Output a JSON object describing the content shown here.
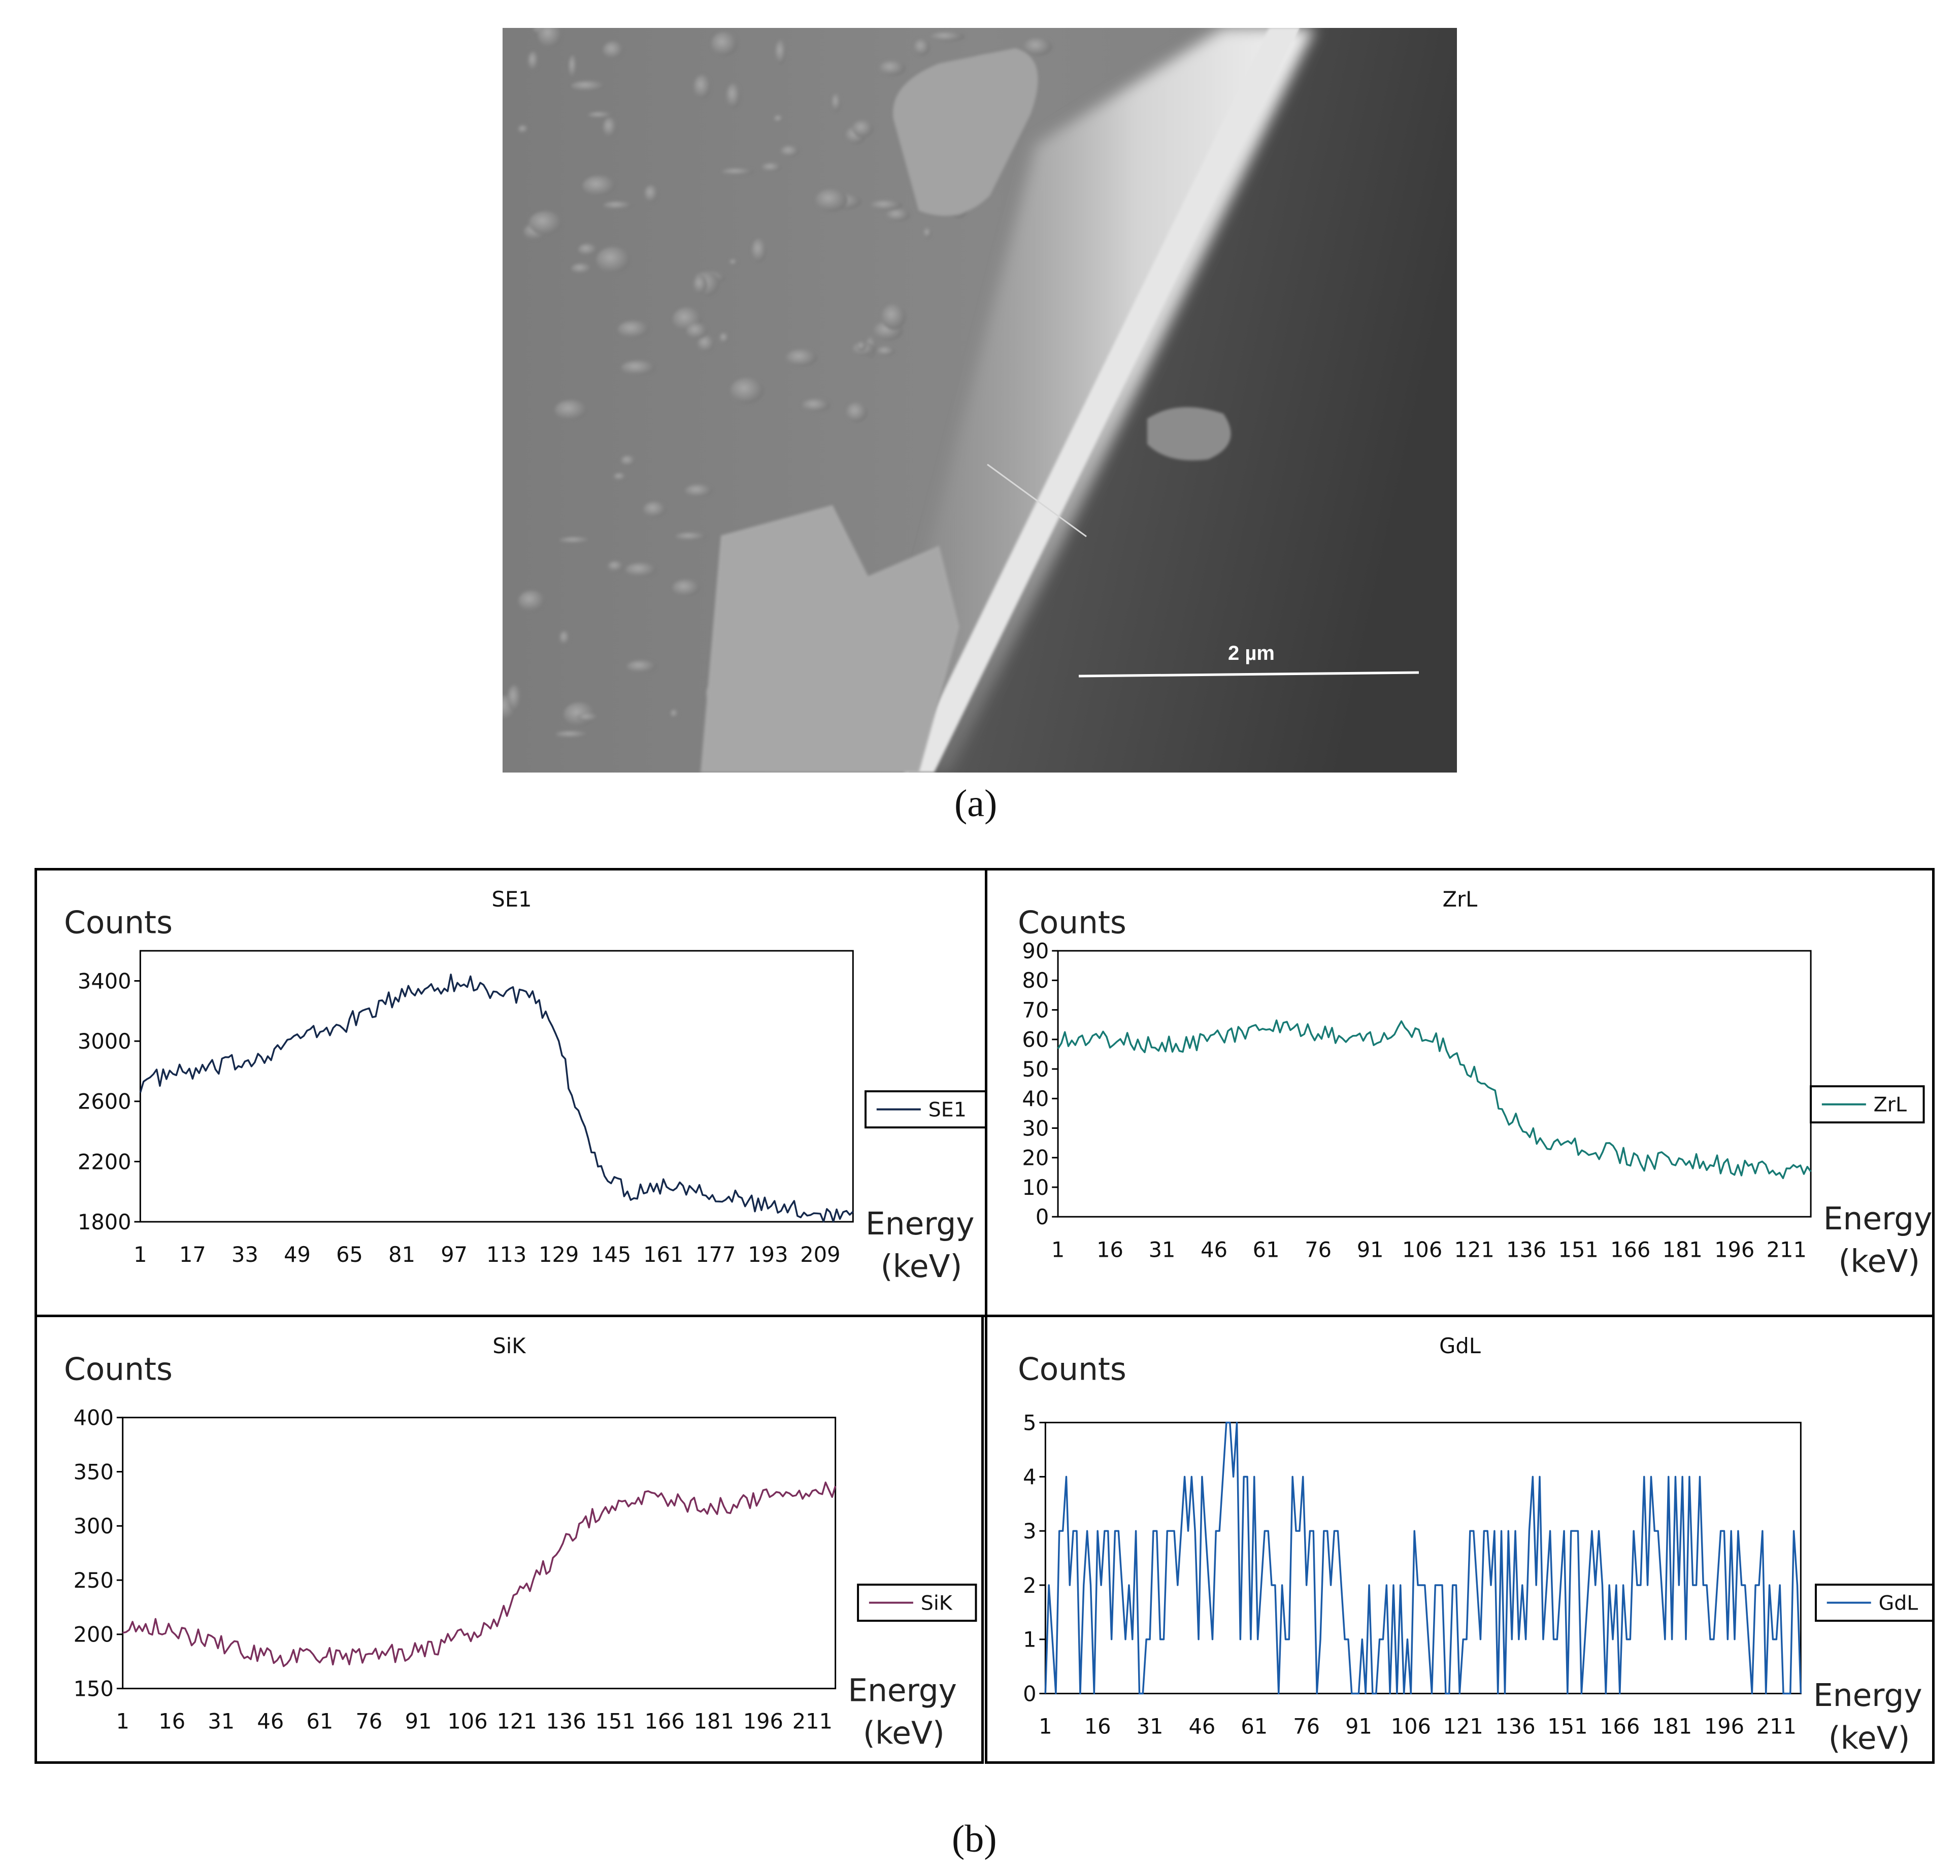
{
  "figure": {
    "caption_a": "(a)",
    "caption_b": "(b)",
    "scale_bar_label": "2 µm"
  },
  "chart_data": [
    {
      "id": "se1",
      "type": "line",
      "title": "SE1",
      "ylabel": "Counts",
      "xlabel_line1": "Energy",
      "xlabel_line2": "(keV)",
      "legend": "SE1",
      "color": "#14284b",
      "ylim": [
        1800,
        3600
      ],
      "yticks": [
        1800,
        2200,
        2600,
        3000,
        3400
      ],
      "xlim": [
        1,
        219
      ],
      "xticks": [
        1,
        17,
        33,
        49,
        65,
        81,
        97,
        113,
        129,
        145,
        161,
        177,
        193,
        209
      ],
      "series": [
        {
          "name": "SE1",
          "x": [
            1,
            10,
            20,
            30,
            40,
            50,
            60,
            70,
            80,
            90,
            100,
            110,
            120,
            125,
            130,
            135,
            140,
            145,
            150,
            160,
            170,
            180,
            190,
            200,
            210,
            219
          ],
          "values": [
            2720,
            2780,
            2800,
            2850,
            2920,
            3030,
            3080,
            3180,
            3300,
            3370,
            3390,
            3330,
            3300,
            3150,
            2900,
            2500,
            2250,
            2080,
            2000,
            2040,
            2040,
            1970,
            1910,
            1880,
            1860,
            1840
          ]
        }
      ]
    },
    {
      "id": "zrl",
      "type": "line",
      "title": "ZrL",
      "ylabel": "Counts",
      "xlabel_line1": "Energy",
      "xlabel_line2": "(keV)",
      "legend": "ZrL",
      "color": "#177a74",
      "ylim": [
        0,
        90
      ],
      "yticks": [
        0,
        10,
        20,
        30,
        40,
        50,
        60,
        70,
        80,
        90
      ],
      "xlim": [
        1,
        218
      ],
      "xticks": [
        1,
        16,
        31,
        46,
        61,
        76,
        91,
        106,
        121,
        136,
        151,
        166,
        181,
        196,
        211
      ],
      "series": [
        {
          "name": "ZrL",
          "x": [
            1,
            15,
            30,
            45,
            60,
            75,
            90,
            100,
            110,
            120,
            125,
            130,
            140,
            150,
            160,
            170,
            180,
            190,
            200,
            210,
            218
          ],
          "values": [
            60,
            60,
            58,
            60,
            64,
            62,
            60,
            65,
            60,
            50,
            44,
            35,
            26,
            24,
            22,
            18,
            20,
            18,
            16,
            15,
            18
          ]
        }
      ]
    },
    {
      "id": "sik",
      "type": "line",
      "title": "SiK",
      "ylabel": "Counts",
      "xlabel_line1": "Energy",
      "xlabel_line2": "(keV)",
      "legend": "SiK",
      "color": "#7a2f5c",
      "ylim": [
        150,
        400
      ],
      "yticks": [
        150,
        200,
        250,
        300,
        350,
        400
      ],
      "xlim": [
        1,
        218
      ],
      "xticks": [
        1,
        16,
        31,
        46,
        61,
        76,
        91,
        106,
        121,
        136,
        151,
        166,
        181,
        196,
        211
      ],
      "series": [
        {
          "name": "SiK",
          "x": [
            1,
            10,
            20,
            30,
            40,
            50,
            60,
            70,
            80,
            90,
            100,
            110,
            115,
            120,
            130,
            140,
            150,
            160,
            170,
            180,
            190,
            200,
            210,
            218
          ],
          "values": [
            210,
            208,
            200,
            192,
            182,
            178,
            180,
            180,
            182,
            184,
            192,
            205,
            215,
            232,
            262,
            300,
            322,
            325,
            322,
            318,
            322,
            328,
            330,
            335
          ]
        }
      ]
    },
    {
      "id": "gdl",
      "type": "line",
      "title": "GdL",
      "ylabel": "Counts",
      "xlabel_line1": "Energy",
      "xlabel_line2": "(keV)",
      "legend": "GdL",
      "color": "#1a5ba8",
      "ylim": [
        0,
        5
      ],
      "yticks": [
        0,
        1,
        2,
        3,
        4,
        5
      ],
      "xlim": [
        1,
        218
      ],
      "xticks": [
        1,
        16,
        31,
        46,
        61,
        76,
        91,
        106,
        121,
        136,
        151,
        166,
        181,
        196,
        211
      ],
      "series": [
        {
          "name": "GdL",
          "x": [
            1,
            7,
            14,
            24,
            28,
            40,
            56,
            64,
            76,
            95,
            110,
            120,
            138,
            160,
            176,
            196,
            218
          ],
          "values": [
            1,
            4,
            2,
            4,
            2,
            4,
            5,
            2,
            3,
            1,
            2,
            1,
            4,
            2,
            4,
            3,
            1
          ],
          "noise_amplitude": 2
        }
      ]
    }
  ]
}
